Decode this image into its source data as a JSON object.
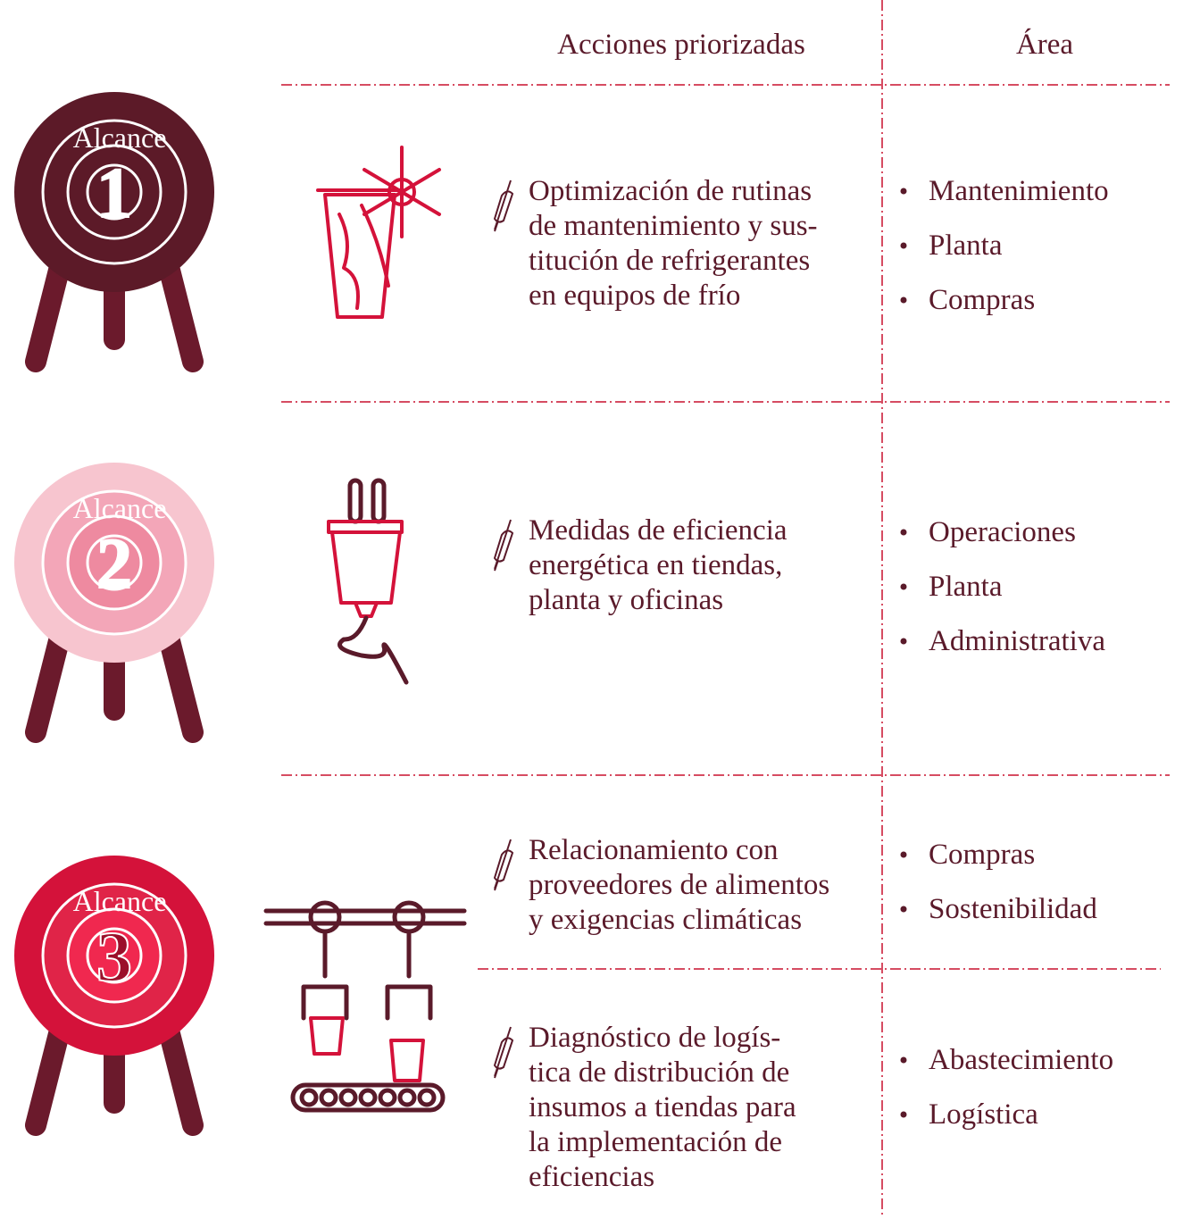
{
  "header": {
    "actions_title": "Acciones priorizadas",
    "area_title": "Área"
  },
  "scopes": [
    {
      "label": "Alcance",
      "number": "1",
      "actions": [
        {
          "lines": [
            "Optimización de rutinas",
            "de mantenimiento y sus-",
            "titución de refrigerantes",
            "en equipos de frío"
          ],
          "areas": [
            "Mantenimiento",
            "Planta",
            "Compras"
          ]
        }
      ]
    },
    {
      "label": "Alcance",
      "number": "2",
      "actions": [
        {
          "lines": [
            "Medidas de eficiencia",
            "energética en tiendas,",
            "planta y oficinas"
          ],
          "areas": [
            "Operaciones",
            "Planta",
            "Administrativa"
          ]
        }
      ]
    },
    {
      "label": "Alcance",
      "number": "3",
      "actions": [
        {
          "lines": [
            "Relacionamiento con",
            "proveedores de alimentos",
            "y exigencias climáticas"
          ],
          "areas": [
            "Compras",
            "Sostenibilidad"
          ]
        },
        {
          "lines": [
            "Diagnóstico de logís-",
            "tica de distribución de",
            "insumos a tiendas para",
            "la implementación de",
            "eficiencias"
          ],
          "areas": [
            "Abastecimiento",
            "Logística"
          ]
        }
      ]
    }
  ]
}
